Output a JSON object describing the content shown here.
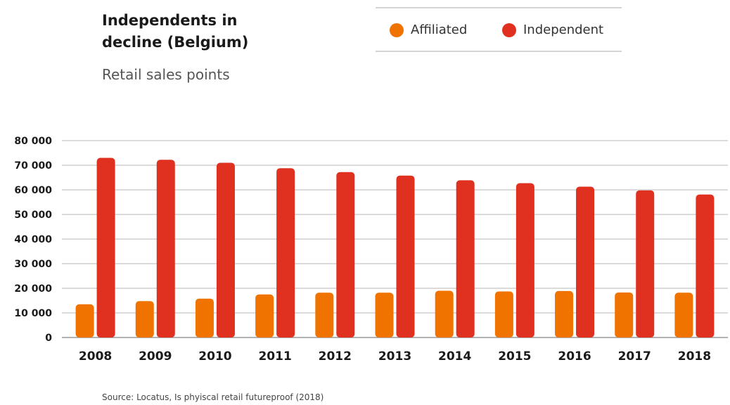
{
  "chart_data": {
    "type": "bar",
    "title": "Independents in decline (Belgium)",
    "subtitle": "Retail sales points",
    "xlabel": "",
    "ylabel": "",
    "categories": [
      "2008",
      "2009",
      "2010",
      "2011",
      "2012",
      "2013",
      "2014",
      "2015",
      "2016",
      "2017",
      "2018"
    ],
    "series": [
      {
        "name": "Affiliated",
        "color": "#f07300",
        "values": [
          13500,
          14800,
          15800,
          17500,
          18200,
          18200,
          19000,
          18700,
          18900,
          18300,
          18200
        ]
      },
      {
        "name": "Independent",
        "color": "#e03020",
        "values": [
          73000,
          72200,
          71000,
          68800,
          67200,
          65800,
          63900,
          62700,
          61300,
          59800,
          58100
        ]
      }
    ],
    "ylim": [
      0,
      80000
    ],
    "yticks": [
      0,
      10000,
      20000,
      30000,
      40000,
      50000,
      60000,
      70000,
      80000
    ],
    "ytick_labels": [
      "0",
      "10 000",
      "20 000",
      "30 000",
      "40 000",
      "50 000",
      "60 000",
      "70 000",
      "80 000"
    ],
    "grid": true,
    "legend_position": "top-right"
  },
  "source_text": "Source: Locatus, Is phyiscal retail futureproof (2018)"
}
